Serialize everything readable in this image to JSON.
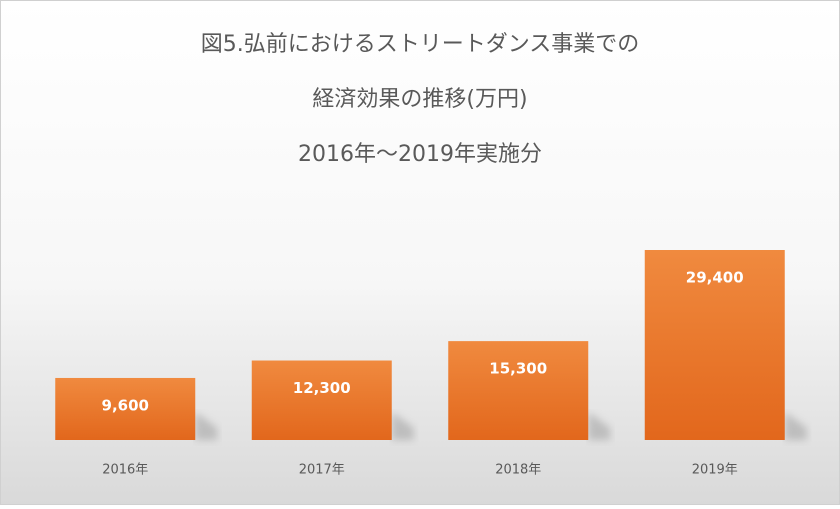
{
  "chart_data": {
    "type": "bar",
    "title": [
      "図5.弘前におけるストリートダンス事業での",
      "経済効果の推移(万円)",
      "2016年～2019年実施分"
    ],
    "categories": [
      "2016年",
      "2017年",
      "2018年",
      "2019年"
    ],
    "values": [
      9600,
      12300,
      15300,
      29400
    ],
    "value_labels": [
      "9,600",
      "12,300",
      "15,300",
      "29,400"
    ],
    "color": "#ed7d31"
  }
}
